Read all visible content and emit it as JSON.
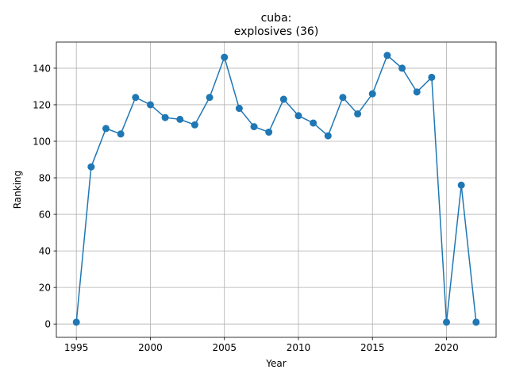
{
  "chart_data": {
    "type": "line",
    "title_line1": "cuba:",
    "title_line2": "explosives (36)",
    "xlabel": "Year",
    "ylabel": "Ranking",
    "xlim": [
      1993.65,
      2023.35
    ],
    "ylim": [
      -7.3,
      154.3
    ],
    "xticks": [
      1995,
      2000,
      2005,
      2010,
      2015,
      2020
    ],
    "yticks": [
      0,
      20,
      40,
      60,
      80,
      100,
      120,
      140
    ],
    "grid": true,
    "color": "#1f77b4",
    "series": [
      {
        "x": [
          1995,
          1996,
          1997,
          1998,
          1999,
          2000,
          2001,
          2002,
          2003,
          2004,
          2005,
          2006,
          2007,
          2008,
          2009,
          2010,
          2011,
          2012,
          2013,
          2014,
          2015,
          2016,
          2017,
          2018,
          2019,
          2020,
          2021,
          2022
        ],
        "y": [
          1,
          86,
          107,
          104,
          124,
          120,
          113,
          112,
          109,
          124,
          146,
          118,
          108,
          105,
          123,
          114,
          110,
          103,
          124,
          115,
          126,
          147,
          140,
          127,
          135,
          1,
          76,
          1
        ]
      }
    ]
  }
}
